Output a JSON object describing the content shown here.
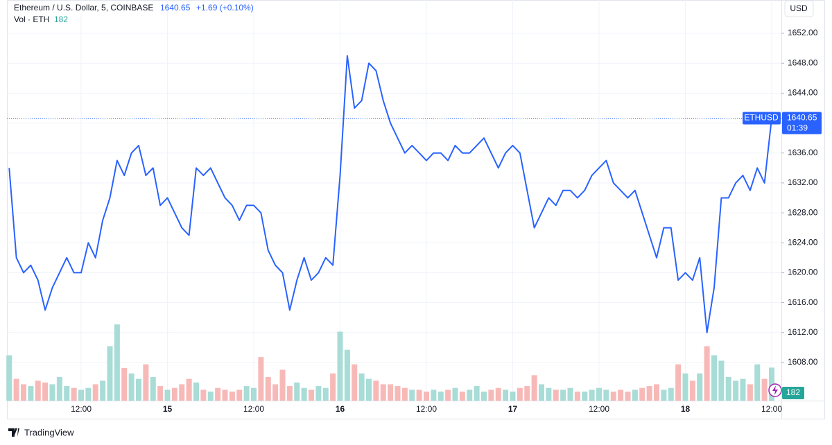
{
  "header": {
    "symbol": "Ethereum / U.S. Dollar, 5, COINBASE",
    "change": "+1.69 (+0.10%)"
  },
  "currency": "USD",
  "footer": "TradingView",
  "chart_data": {
    "type": "line",
    "categories": [
      null,
      null,
      null,
      null,
      null,
      null,
      null,
      null,
      null,
      null,
      "12:00",
      null,
      null,
      null,
      null,
      null,
      null,
      null,
      null,
      null,
      null,
      null,
      "15",
      null,
      null,
      null,
      null,
      null,
      null,
      null,
      null,
      null,
      null,
      null,
      "12:00",
      null,
      null,
      null,
      null,
      null,
      null,
      null,
      null,
      null,
      null,
      null,
      "16",
      null,
      null,
      null,
      null,
      null,
      null,
      null,
      null,
      null,
      null,
      null,
      "12:00",
      null,
      null,
      null,
      null,
      null,
      null,
      null,
      null,
      null,
      null,
      null,
      "17",
      null,
      null,
      null,
      null,
      null,
      null,
      null,
      null,
      null,
      null,
      null,
      "12:00",
      null,
      null,
      null,
      null,
      null,
      null,
      null,
      null,
      null,
      null,
      null,
      "18",
      null,
      null,
      null,
      null,
      null,
      null,
      null,
      null,
      null,
      null,
      null,
      "12:00"
    ],
    "series": [
      {
        "name": "ETHUSD",
        "color": "#2962ff",
        "values": [
          1634,
          1622,
          1620,
          1621,
          1619,
          1615,
          1618,
          1620,
          1622,
          1620,
          1620,
          1624,
          1622,
          1627,
          1630,
          1635,
          1633,
          1636,
          1637,
          1633,
          1634,
          1629,
          1630,
          1628,
          1626,
          1625,
          1634,
          1633,
          1634,
          1632,
          1630,
          1629,
          1627,
          1629,
          1629,
          1628,
          1623,
          1621,
          1620,
          1615,
          1619,
          1622,
          1619,
          1620,
          1622,
          1621,
          1633,
          1649,
          1642,
          1643,
          1648,
          1647,
          1643,
          1640,
          1638,
          1636,
          1637,
          1636,
          1635,
          1636,
          1636,
          1635,
          1637,
          1636,
          1636,
          1637,
          1638,
          1636,
          1634,
          1636,
          1637,
          1636,
          1631,
          1626,
          1628,
          1630,
          1629,
          1631,
          1631,
          1630,
          1631,
          1633,
          1634,
          1635,
          1632,
          1631,
          1630,
          1631,
          1628,
          1625,
          1622,
          1626,
          1626,
          1619,
          1620,
          1619,
          1622,
          1612,
          1618,
          1630,
          1630,
          1632,
          1633,
          1631,
          1634,
          1632,
          1640.65
        ]
      },
      {
        "name": "Vol · ETH",
        "type": "bar",
        "up_color": "#a8dcd6",
        "down_color": "#f7b9b7",
        "values": [
          250,
          120,
          90,
          80,
          110,
          100,
          90,
          130,
          80,
          70,
          60,
          70,
          90,
          110,
          300,
          420,
          180,
          150,
          120,
          200,
          130,
          80,
          60,
          70,
          90,
          120,
          100,
          60,
          50,
          70,
          60,
          50,
          60,
          80,
          70,
          240,
          130,
          90,
          170,
          80,
          100,
          70,
          60,
          80,
          70,
          150,
          380,
          280,
          200,
          150,
          120,
          110,
          90,
          90,
          80,
          70,
          60,
          60,
          50,
          60,
          50,
          60,
          70,
          50,
          60,
          80,
          50,
          60,
          70,
          60,
          50,
          70,
          80,
          140,
          90,
          70,
          60,
          60,
          70,
          50,
          50,
          60,
          70,
          60,
          50,
          60,
          50,
          60,
          70,
          80,
          90,
          60,
          70,
          200,
          150,
          110,
          150,
          300,
          250,
          220,
          130,
          110,
          120,
          90,
          200,
          120,
          182
        ]
      }
    ],
    "ylim": [
      1602.9,
      1656.45
    ],
    "yticks": [
      {
        "value": 1608,
        "label": "1608.00"
      },
      {
        "value": 1612,
        "label": "1612.00"
      },
      {
        "value": 1616,
        "label": "1616.00"
      },
      {
        "value": 1620,
        "label": "1620.00"
      },
      {
        "value": 1624,
        "label": "1624.00"
      },
      {
        "value": 1628,
        "label": "1628.00"
      },
      {
        "value": 1632,
        "label": "1632.00"
      },
      {
        "value": 1636,
        "label": "1636.00"
      },
      {
        "value": 1640,
        "label": "1640.00"
      },
      {
        "value": 1644,
        "label": "1644.00"
      },
      {
        "value": 1648,
        "label": "1648.00"
      },
      {
        "value": 1652,
        "label": "1652.00"
      }
    ],
    "grid": true,
    "countdown": "01:39"
  }
}
